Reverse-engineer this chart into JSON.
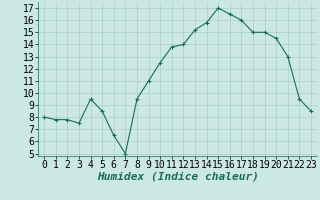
{
  "x": [
    0,
    1,
    2,
    3,
    4,
    5,
    6,
    7,
    8,
    9,
    10,
    11,
    12,
    13,
    14,
    15,
    16,
    17,
    18,
    19,
    20,
    21,
    22,
    23
  ],
  "y": [
    8,
    7.8,
    7.8,
    7.5,
    9.5,
    8.5,
    6.5,
    5,
    9.5,
    11,
    12.5,
    13.8,
    14,
    15.2,
    15.8,
    17,
    16.5,
    16,
    15,
    15,
    14.5,
    13,
    9.5,
    8.5
  ],
  "xlabel": "Humidex (Indice chaleur)",
  "xlim": [
    -0.5,
    23.5
  ],
  "ylim": [
    4.8,
    17.5
  ],
  "yticks": [
    5,
    6,
    7,
    8,
    9,
    10,
    11,
    12,
    13,
    14,
    15,
    16,
    17
  ],
  "xticks": [
    0,
    1,
    2,
    3,
    4,
    5,
    6,
    7,
    8,
    9,
    10,
    11,
    12,
    13,
    14,
    15,
    16,
    17,
    18,
    19,
    20,
    21,
    22,
    23
  ],
  "line_color": "#1a6b5a",
  "marker": "+",
  "bg_color": "#cce8e5",
  "grid_color": "#aacfcc",
  "tick_fontsize": 7,
  "xlabel_fontsize": 8
}
